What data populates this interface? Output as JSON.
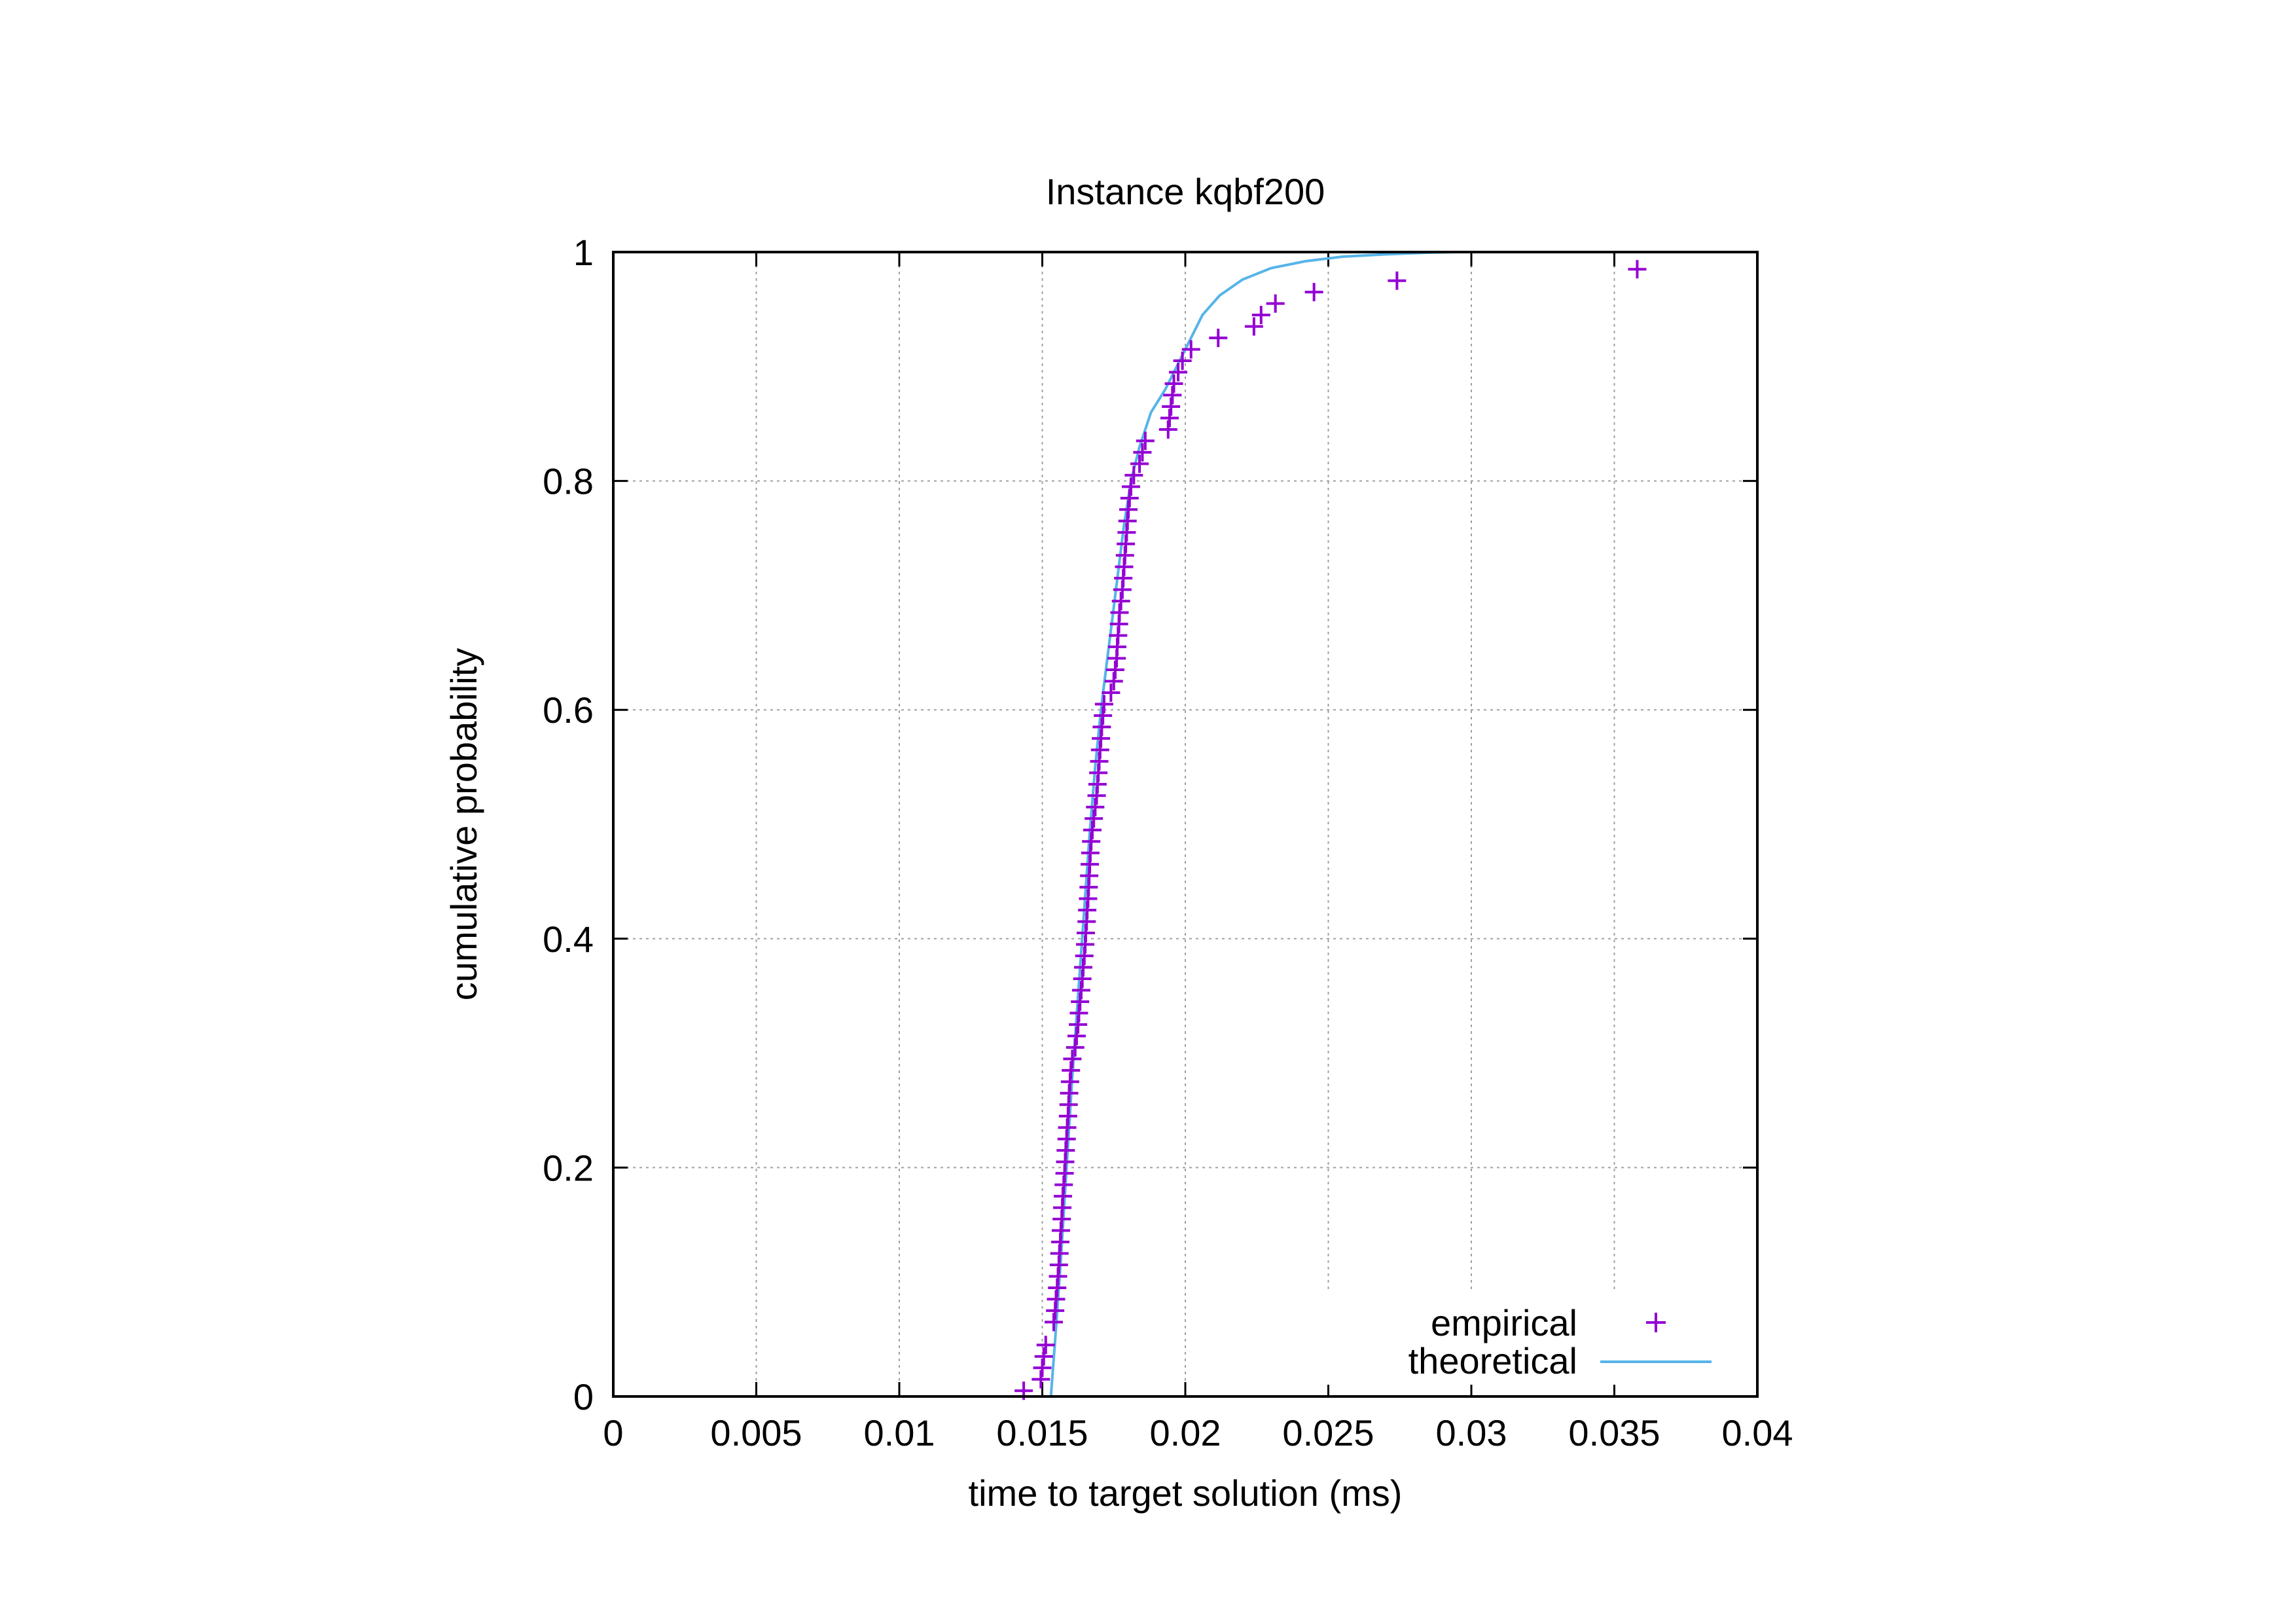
{
  "chart_data": {
    "type": "scatter",
    "title": "Instance kqbf200",
    "xlabel": "time to target solution (ms)",
    "ylabel": "cumulative probability",
    "xlim": [
      0,
      0.04
    ],
    "ylim": [
      0,
      1
    ],
    "x_ticks": [
      "0",
      "0.005",
      "0.01",
      "0.015",
      "0.02",
      "0.025",
      "0.03",
      "0.035",
      "0.04"
    ],
    "y_ticks": [
      "0",
      "0.2",
      "0.4",
      "0.6",
      "0.8",
      "1"
    ],
    "grid": true,
    "legend_position": "bottom-right",
    "series": [
      {
        "name": "empirical",
        "kind": "points",
        "marker": "plus",
        "color": "#9400D3",
        "points": [
          [
            0.01435,
            0.005
          ],
          [
            0.01495,
            0.015
          ],
          [
            0.015,
            0.025
          ],
          [
            0.01505,
            0.035
          ],
          [
            0.01512,
            0.045
          ],
          [
            0.0154,
            0.065
          ],
          [
            0.01545,
            0.075
          ],
          [
            0.01548,
            0.085
          ],
          [
            0.01552,
            0.095
          ],
          [
            0.01555,
            0.105
          ],
          [
            0.01558,
            0.115
          ],
          [
            0.0156,
            0.125
          ],
          [
            0.01563,
            0.135
          ],
          [
            0.01565,
            0.145
          ],
          [
            0.01568,
            0.155
          ],
          [
            0.0157,
            0.165
          ],
          [
            0.01572,
            0.175
          ],
          [
            0.01575,
            0.185
          ],
          [
            0.01578,
            0.195
          ],
          [
            0.0158,
            0.205
          ],
          [
            0.01582,
            0.215
          ],
          [
            0.01585,
            0.225
          ],
          [
            0.01587,
            0.235
          ],
          [
            0.0159,
            0.245
          ],
          [
            0.01592,
            0.255
          ],
          [
            0.01594,
            0.265
          ],
          [
            0.01597,
            0.275
          ],
          [
            0.016,
            0.285
          ],
          [
            0.01605,
            0.295
          ],
          [
            0.01615,
            0.305
          ],
          [
            0.0162,
            0.315
          ],
          [
            0.01625,
            0.325
          ],
          [
            0.01628,
            0.335
          ],
          [
            0.01632,
            0.345
          ],
          [
            0.01636,
            0.355
          ],
          [
            0.0164,
            0.365
          ],
          [
            0.01643,
            0.375
          ],
          [
            0.01647,
            0.385
          ],
          [
            0.0165,
            0.395
          ],
          [
            0.01652,
            0.405
          ],
          [
            0.01655,
            0.415
          ],
          [
            0.01657,
            0.425
          ],
          [
            0.0166,
            0.435
          ],
          [
            0.01662,
            0.445
          ],
          [
            0.01664,
            0.455
          ],
          [
            0.01666,
            0.465
          ],
          [
            0.01668,
            0.475
          ],
          [
            0.01671,
            0.485
          ],
          [
            0.01675,
            0.495
          ],
          [
            0.0168,
            0.505
          ],
          [
            0.01685,
            0.515
          ],
          [
            0.0169,
            0.525
          ],
          [
            0.01693,
            0.535
          ],
          [
            0.01696,
            0.545
          ],
          [
            0.01699,
            0.555
          ],
          [
            0.01702,
            0.565
          ],
          [
            0.01705,
            0.575
          ],
          [
            0.01708,
            0.585
          ],
          [
            0.01712,
            0.595
          ],
          [
            0.01716,
            0.605
          ],
          [
            0.0174,
            0.615
          ],
          [
            0.0175,
            0.625
          ],
          [
            0.01755,
            0.635
          ],
          [
            0.0176,
            0.645
          ],
          [
            0.01762,
            0.655
          ],
          [
            0.01765,
            0.665
          ],
          [
            0.01768,
            0.675
          ],
          [
            0.0177,
            0.685
          ],
          [
            0.01775,
            0.695
          ],
          [
            0.0178,
            0.705
          ],
          [
            0.01783,
            0.715
          ],
          [
            0.01786,
            0.725
          ],
          [
            0.01789,
            0.735
          ],
          [
            0.01792,
            0.745
          ],
          [
            0.01795,
            0.755
          ],
          [
            0.01798,
            0.765
          ],
          [
            0.01801,
            0.775
          ],
          [
            0.01805,
            0.785
          ],
          [
            0.0181,
            0.795
          ],
          [
            0.0182,
            0.805
          ],
          [
            0.0184,
            0.815
          ],
          [
            0.0185,
            0.825
          ],
          [
            0.0186,
            0.835
          ],
          [
            0.0194,
            0.845
          ],
          [
            0.01945,
            0.855
          ],
          [
            0.0195,
            0.865
          ],
          [
            0.01955,
            0.875
          ],
          [
            0.0196,
            0.885
          ],
          [
            0.01975,
            0.895
          ],
          [
            0.0199,
            0.905
          ],
          [
            0.0202,
            0.915
          ],
          [
            0.02115,
            0.925
          ],
          [
            0.0224,
            0.935
          ],
          [
            0.02265,
            0.945
          ],
          [
            0.02315,
            0.955
          ],
          [
            0.0245,
            0.965
          ],
          [
            0.0274,
            0.975
          ],
          [
            0.0358,
            0.985
          ]
        ]
      },
      {
        "name": "theoretical",
        "kind": "line",
        "color": "#56B4E9",
        "points": [
          [
            0.0153,
            0.0
          ],
          [
            0.01545,
            0.05
          ],
          [
            0.01565,
            0.12
          ],
          [
            0.01585,
            0.2
          ],
          [
            0.01605,
            0.28
          ],
          [
            0.01625,
            0.35
          ],
          [
            0.01645,
            0.42
          ],
          [
            0.01665,
            0.49
          ],
          [
            0.01685,
            0.55
          ],
          [
            0.01705,
            0.6
          ],
          [
            0.01725,
            0.64
          ],
          [
            0.01745,
            0.68
          ],
          [
            0.01765,
            0.72
          ],
          [
            0.01785,
            0.76
          ],
          [
            0.0181,
            0.8
          ],
          [
            0.0184,
            0.83
          ],
          [
            0.0188,
            0.86
          ],
          [
            0.0193,
            0.88
          ],
          [
            0.0197,
            0.9
          ],
          [
            0.0201,
            0.92
          ],
          [
            0.0206,
            0.945
          ],
          [
            0.0212,
            0.962
          ],
          [
            0.022,
            0.976
          ],
          [
            0.023,
            0.986
          ],
          [
            0.0242,
            0.992
          ],
          [
            0.0255,
            0.996
          ],
          [
            0.027,
            0.998
          ],
          [
            0.0285,
            0.9995
          ],
          [
            0.0295,
            1.0
          ]
        ]
      }
    ]
  }
}
